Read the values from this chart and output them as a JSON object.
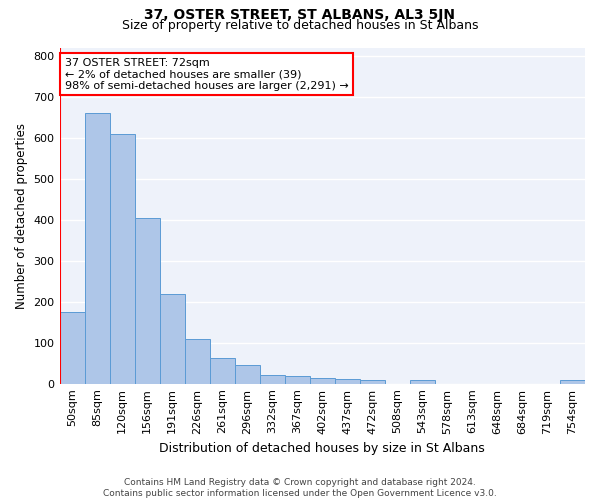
{
  "title": "37, OSTER STREET, ST ALBANS, AL3 5JN",
  "subtitle": "Size of property relative to detached houses in St Albans",
  "xlabel": "Distribution of detached houses by size in St Albans",
  "ylabel": "Number of detached properties",
  "categories": [
    "50sqm",
    "85sqm",
    "120sqm",
    "156sqm",
    "191sqm",
    "226sqm",
    "261sqm",
    "296sqm",
    "332sqm",
    "367sqm",
    "402sqm",
    "437sqm",
    "472sqm",
    "508sqm",
    "543sqm",
    "578sqm",
    "613sqm",
    "648sqm",
    "684sqm",
    "719sqm",
    "754sqm"
  ],
  "values": [
    175,
    660,
    610,
    405,
    218,
    110,
    63,
    45,
    20,
    18,
    15,
    12,
    9,
    0,
    8,
    0,
    0,
    0,
    0,
    0,
    9
  ],
  "bar_color": "#aec6e8",
  "bar_edge_color": "#5b9bd5",
  "vline_x": -0.5,
  "vline_color": "red",
  "annotation_text_lines": [
    "37 OSTER STREET: 72sqm",
    "← 2% of detached houses are smaller (39)",
    "98% of semi-detached houses are larger (2,291) →"
  ],
  "annotation_box_color": "white",
  "annotation_box_edge": "red",
  "ylim": [
    0,
    820
  ],
  "yticks": [
    0,
    100,
    200,
    300,
    400,
    500,
    600,
    700,
    800
  ],
  "background_color": "#eef2fa",
  "grid_color": "white",
  "footer": "Contains HM Land Registry data © Crown copyright and database right 2024.\nContains public sector information licensed under the Open Government Licence v3.0.",
  "title_fontsize": 10,
  "subtitle_fontsize": 9,
  "xlabel_fontsize": 9,
  "ylabel_fontsize": 8.5,
  "tick_fontsize": 8,
  "annotation_fontsize": 8,
  "footer_fontsize": 6.5
}
